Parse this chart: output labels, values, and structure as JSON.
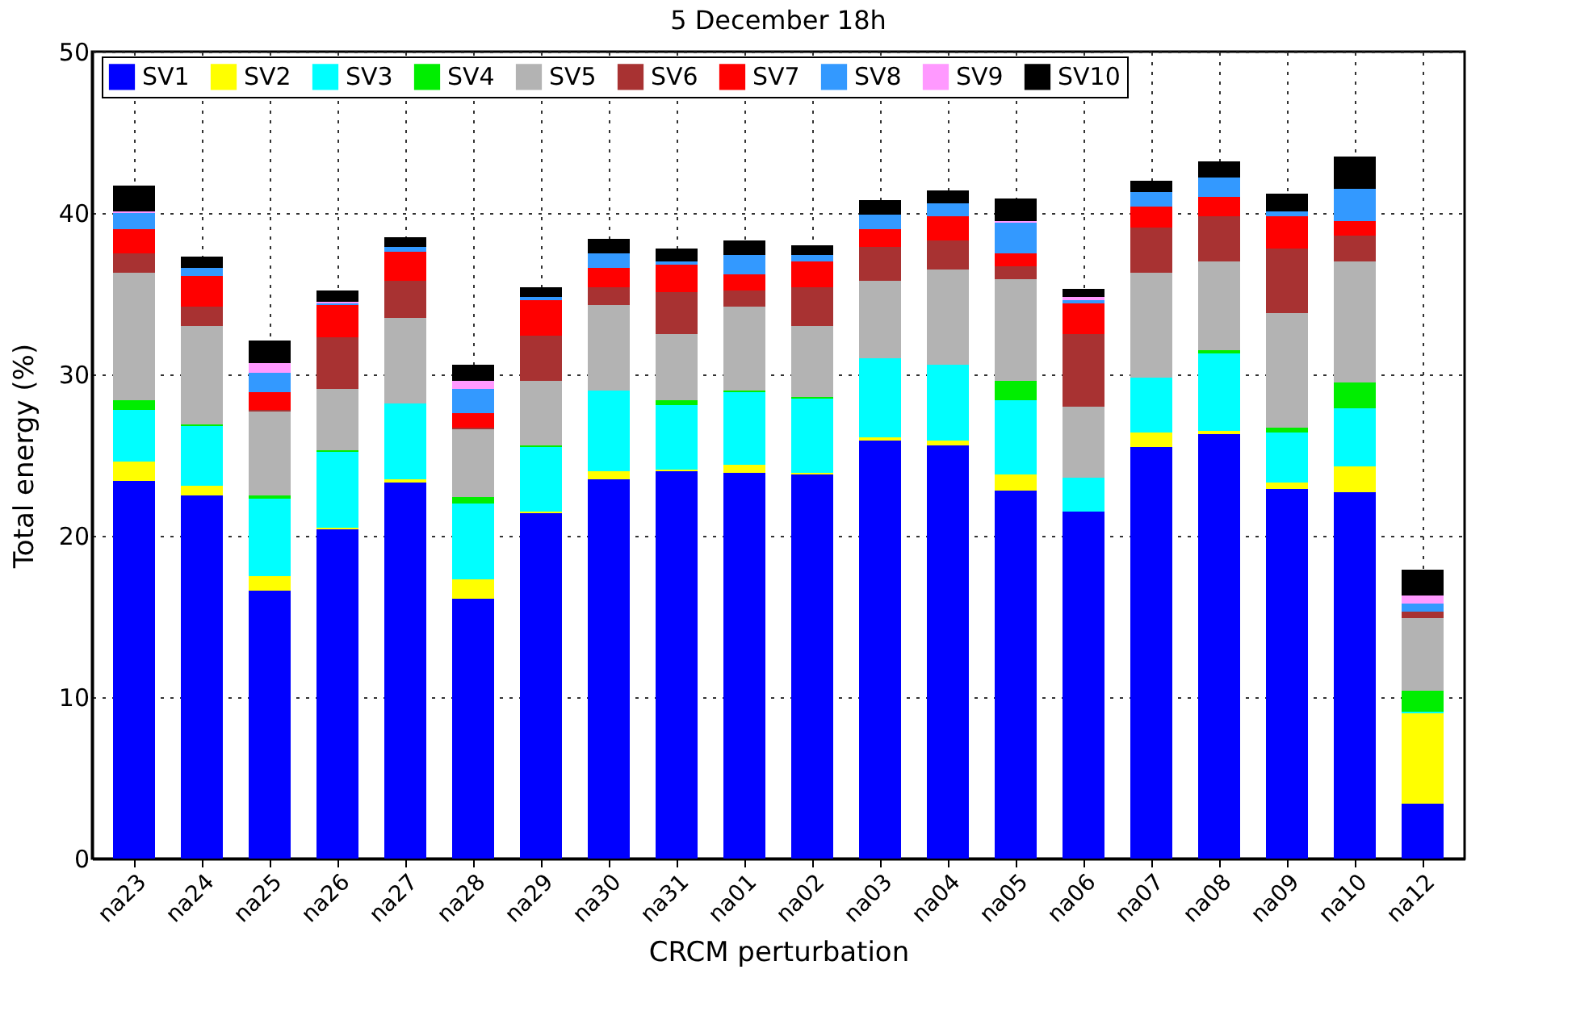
{
  "chart_data": {
    "type": "bar",
    "stacked": true,
    "title": "5 December 18h",
    "xlabel": "CRCM perturbation",
    "ylabel": "Total energy (%)",
    "categories": [
      "na23",
      "na24",
      "na25",
      "na26",
      "na27",
      "na28",
      "na29",
      "na30",
      "na31",
      "na01",
      "na02",
      "na03",
      "na04",
      "na05",
      "na06",
      "na07",
      "na08",
      "na09",
      "na10",
      "na12"
    ],
    "series": [
      {
        "name": "SV1",
        "color": "#0000ff",
        "values": [
          23.4,
          22.5,
          16.6,
          20.4,
          23.3,
          16.1,
          21.4,
          23.5,
          24.0,
          23.9,
          23.8,
          25.9,
          25.6,
          22.8,
          21.5,
          25.5,
          26.3,
          22.9,
          22.7,
          3.4
        ]
      },
      {
        "name": "SV2",
        "color": "#ffff00",
        "values": [
          1.2,
          0.6,
          0.9,
          0.1,
          0.2,
          1.2,
          0.1,
          0.5,
          0.1,
          0.5,
          0.1,
          0.2,
          0.3,
          1.0,
          0,
          0.9,
          0.2,
          0.4,
          1.6,
          5.6
        ]
      },
      {
        "name": "SV3",
        "color": "#00ffff",
        "values": [
          3.2,
          3.7,
          4.8,
          4.7,
          4.7,
          4.7,
          4.0,
          5.0,
          4.0,
          4.5,
          4.6,
          4.9,
          4.7,
          4.6,
          2.1,
          3.4,
          4.8,
          3.1,
          3.6,
          0.1
        ]
      },
      {
        "name": "SV4",
        "color": "#00ee00",
        "values": [
          0.6,
          0.1,
          0.2,
          0.1,
          0,
          0.4,
          0.1,
          0,
          0.3,
          0.1,
          0.1,
          0,
          0,
          1.2,
          0,
          0,
          0.2,
          0.3,
          1.6,
          1.3
        ]
      },
      {
        "name": "SV5",
        "color": "#b3b3b3",
        "values": [
          7.9,
          6.1,
          5.2,
          3.8,
          5.3,
          4.2,
          4.0,
          5.3,
          4.1,
          5.2,
          4.4,
          4.8,
          5.9,
          6.3,
          4.4,
          6.5,
          5.5,
          7.1,
          7.5,
          4.5
        ]
      },
      {
        "name": "SV6",
        "color": "#a83232",
        "values": [
          1.2,
          1.2,
          0.1,
          3.2,
          2.3,
          0.1,
          2.8,
          1.1,
          2.6,
          1.0,
          2.4,
          2.1,
          1.8,
          0.8,
          4.5,
          2.8,
          2.8,
          4.0,
          1.6,
          0.4
        ]
      },
      {
        "name": "SV7",
        "color": "#ff0000",
        "values": [
          1.5,
          1.9,
          1.1,
          2.0,
          1.8,
          0.9,
          2.2,
          1.2,
          1.7,
          1.0,
          1.6,
          1.1,
          1.5,
          0.8,
          1.9,
          1.3,
          1.2,
          2.0,
          0.9,
          0
        ]
      },
      {
        "name": "SV8",
        "color": "#3399ff",
        "values": [
          1.0,
          0.5,
          1.2,
          0.1,
          0.3,
          1.5,
          0.2,
          0.9,
          0.2,
          1.2,
          0.4,
          0.9,
          0.8,
          1.9,
          0.2,
          0.9,
          1.2,
          0.3,
          2.0,
          0.5
        ]
      },
      {
        "name": "SV9",
        "color": "#ff99ff",
        "values": [
          0.1,
          0,
          0.6,
          0.1,
          0,
          0.5,
          0,
          0,
          0,
          0,
          0,
          0,
          0,
          0.1,
          0.2,
          0,
          0,
          0,
          0,
          0.5
        ]
      },
      {
        "name": "SV10",
        "color": "#000000",
        "values": [
          1.6,
          0.7,
          1.4,
          0.7,
          0.6,
          1.0,
          0.6,
          0.9,
          0.8,
          0.9,
          0.6,
          0.9,
          0.8,
          1.4,
          0.5,
          0.7,
          1.0,
          1.1,
          2.0,
          1.6
        ]
      }
    ],
    "ylim": [
      0,
      50
    ],
    "yticks": [
      0,
      10,
      20,
      30,
      40,
      50
    ],
    "grid": true,
    "legend": "top"
  }
}
